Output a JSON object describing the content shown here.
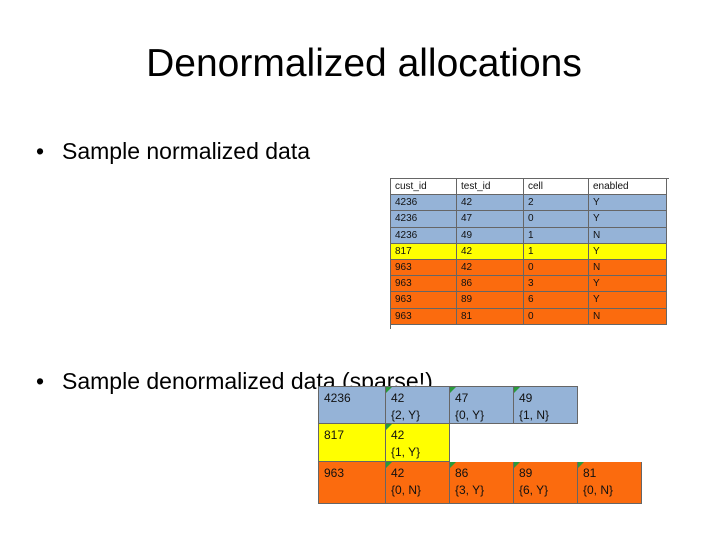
{
  "title": "Denormalized allocations",
  "bullets": [
    "Sample normalized data",
    "Sample denormalized data (sparse!)"
  ],
  "normalized_table": {
    "header": [
      "cust_id",
      "test_id",
      "cell",
      "enabled"
    ],
    "rows": [
      {
        "color": "#95b3d7",
        "cells": [
          4236,
          42,
          2,
          "Y"
        ]
      },
      {
        "color": "#95b3d7",
        "cells": [
          4236,
          47,
          0,
          "Y"
        ]
      },
      {
        "color": "#95b3d7",
        "cells": [
          4236,
          49,
          1,
          "N"
        ]
      },
      {
        "color": "#ffff00",
        "cells": [
          817,
          42,
          1,
          "Y"
        ]
      },
      {
        "color": "#fb6b0e",
        "cells": [
          963,
          42,
          0,
          "N"
        ]
      },
      {
        "color": "#fb6b0e",
        "cells": [
          963,
          86,
          3,
          "Y"
        ]
      },
      {
        "color": "#fb6b0e",
        "cells": [
          963,
          89,
          6,
          "Y"
        ]
      },
      {
        "color": "#fb6b0e",
        "cells": [
          963,
          81,
          0,
          "N"
        ]
      }
    ]
  },
  "denormalized_table": {
    "rows": [
      {
        "color": "#95b3d7",
        "cust_id": 4236,
        "tests": [
          {
            "test_id": 42,
            "value": "{2, Y}"
          },
          {
            "test_id": 47,
            "value": "{0, Y}"
          },
          {
            "test_id": 49,
            "value": "{1, N}"
          }
        ]
      },
      {
        "color": "#ffff00",
        "cust_id": 817,
        "tests": [
          {
            "test_id": 42,
            "value": "{1, Y}"
          }
        ]
      },
      {
        "color": "#fb6b0e",
        "cust_id": 963,
        "tests": [
          {
            "test_id": 42,
            "value": "{0, N}"
          },
          {
            "test_id": 86,
            "value": "{3, Y}"
          },
          {
            "test_id": 89,
            "value": "{6, Y}"
          },
          {
            "test_id": 81,
            "value": "{0, N}"
          }
        ]
      }
    ]
  }
}
